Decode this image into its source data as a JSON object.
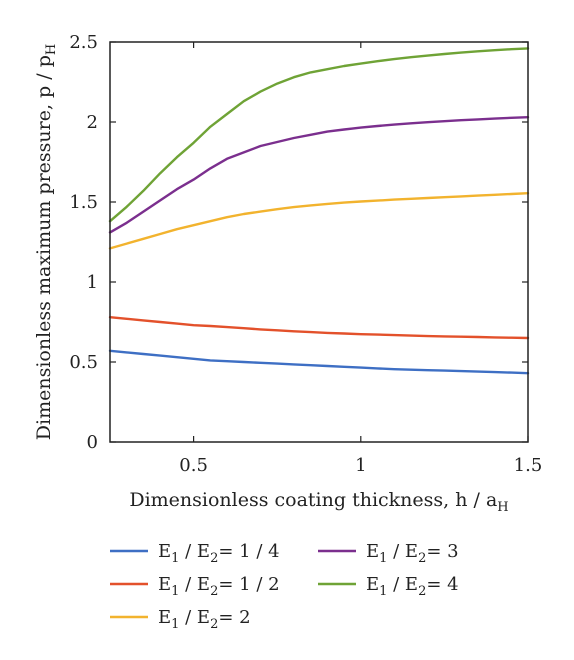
{
  "chart_data": {
    "type": "line",
    "xlabel": {
      "main": "Dimensionless coating thickness, h / a",
      "sub": "H"
    },
    "ylabel": {
      "main": "Dimensionless maximum pressure, p / p",
      "sub": "H"
    },
    "xlim": [
      0.25,
      1.5
    ],
    "ylim": [
      0,
      2.5
    ],
    "xticks": [
      {
        "value": 0.5,
        "label": "0.5"
      },
      {
        "value": 1.0,
        "label": "1"
      },
      {
        "value": 1.5,
        "label": "1.5"
      }
    ],
    "yticks": [
      {
        "value": 0,
        "label": "0"
      },
      {
        "value": 0.5,
        "label": "0.5"
      },
      {
        "value": 1.0,
        "label": "1"
      },
      {
        "value": 1.5,
        "label": "1.5"
      },
      {
        "value": 2.0,
        "label": "2"
      },
      {
        "value": 2.5,
        "label": "2.5"
      }
    ],
    "grid": false,
    "legend_placement": "bottom",
    "x": [
      0.25,
      0.3,
      0.35,
      0.4,
      0.45,
      0.5,
      0.55,
      0.6,
      0.65,
      0.7,
      0.75,
      0.8,
      0.85,
      0.9,
      0.95,
      1.0,
      1.05,
      1.1,
      1.15,
      1.2,
      1.25,
      1.3,
      1.35,
      1.4,
      1.45,
      1.5
    ],
    "series": [
      {
        "name": {
          "a": "E",
          "a_sub": "1",
          "mid": " / E",
          "b_sub": "2",
          "ratio": "= 1 / 4"
        },
        "color": "#3e6fc4",
        "values": [
          0.57,
          0.56,
          0.55,
          0.54,
          0.53,
          0.52,
          0.51,
          0.505,
          0.5,
          0.495,
          0.49,
          0.485,
          0.48,
          0.475,
          0.47,
          0.465,
          0.46,
          0.455,
          0.452,
          0.449,
          0.446,
          0.443,
          0.44,
          0.437,
          0.434,
          0.43
        ]
      },
      {
        "name": {
          "a": "E",
          "a_sub": "1",
          "mid": " / E",
          "b_sub": "2",
          "ratio": "= 1 / 2"
        },
        "color": "#e3512b",
        "values": [
          0.78,
          0.77,
          0.76,
          0.75,
          0.74,
          0.73,
          0.725,
          0.718,
          0.711,
          0.704,
          0.698,
          0.692,
          0.687,
          0.682,
          0.678,
          0.674,
          0.671,
          0.668,
          0.665,
          0.662,
          0.66,
          0.658,
          0.656,
          0.654,
          0.652,
          0.65
        ]
      },
      {
        "name": {
          "a": "E",
          "a_sub": "1",
          "mid": " / E",
          "b_sub": "2",
          "ratio": "= 2"
        },
        "color": "#f2b32e",
        "values": [
          1.21,
          1.24,
          1.27,
          1.3,
          1.33,
          1.355,
          1.38,
          1.405,
          1.425,
          1.44,
          1.455,
          1.468,
          1.479,
          1.488,
          1.496,
          1.503,
          1.509,
          1.515,
          1.52,
          1.525,
          1.53,
          1.535,
          1.54,
          1.545,
          1.55,
          1.555
        ]
      },
      {
        "name": {
          "a": "E",
          "a_sub": "1",
          "mid": " / E",
          "b_sub": "2",
          "ratio": "= 3"
        },
        "color": "#7b2f8e",
        "values": [
          1.31,
          1.37,
          1.44,
          1.51,
          1.58,
          1.64,
          1.71,
          1.77,
          1.81,
          1.85,
          1.875,
          1.9,
          1.92,
          1.94,
          1.953,
          1.965,
          1.975,
          1.984,
          1.992,
          1.999,
          2.005,
          2.011,
          2.016,
          2.021,
          2.026,
          2.03
        ]
      },
      {
        "name": {
          "a": "E",
          "a_sub": "1",
          "mid": " / E",
          "b_sub": "2",
          "ratio": "= 4"
        },
        "color": "#6fa336",
        "values": [
          1.38,
          1.47,
          1.57,
          1.68,
          1.78,
          1.87,
          1.97,
          2.05,
          2.13,
          2.19,
          2.24,
          2.28,
          2.31,
          2.33,
          2.35,
          2.365,
          2.38,
          2.393,
          2.405,
          2.415,
          2.425,
          2.434,
          2.442,
          2.449,
          2.455,
          2.46
        ]
      }
    ]
  }
}
